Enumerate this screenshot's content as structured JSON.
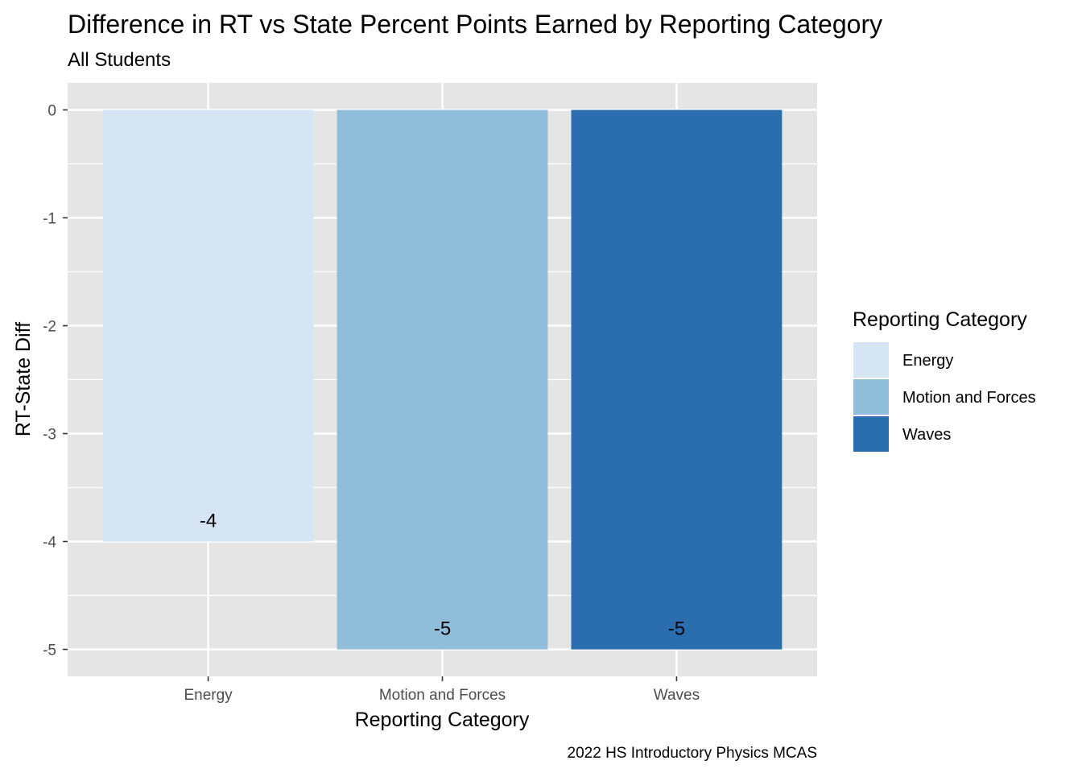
{
  "chart_data": {
    "type": "bar",
    "title": "Difference in RT vs State Percent Points Earned by Reporting Category",
    "subtitle": "All Students",
    "xlabel": "Reporting Category",
    "ylabel": "RT-State Diff",
    "caption": "2022 HS Introductory Physics MCAS",
    "categories": [
      "Energy",
      "Motion and Forces",
      "Waves"
    ],
    "values": [
      -4,
      -5,
      -5
    ],
    "data_labels": [
      "-4",
      "-5",
      "-5"
    ],
    "colors": [
      "#d6e5f4",
      "#90bdda",
      "#2a6eb0"
    ],
    "ylim": [
      -5.25,
      0.25
    ],
    "yticks": [
      0,
      -1,
      -2,
      -3,
      -4,
      -5
    ],
    "ytick_labels": [
      "0",
      "-1",
      "-2",
      "-3",
      "-4",
      "-5"
    ],
    "grid": true,
    "panel_background": "#e5e5e5",
    "legend": {
      "title": "Reporting Category",
      "position": "right",
      "entries": [
        "Energy",
        "Motion and Forces",
        "Waves"
      ]
    }
  }
}
